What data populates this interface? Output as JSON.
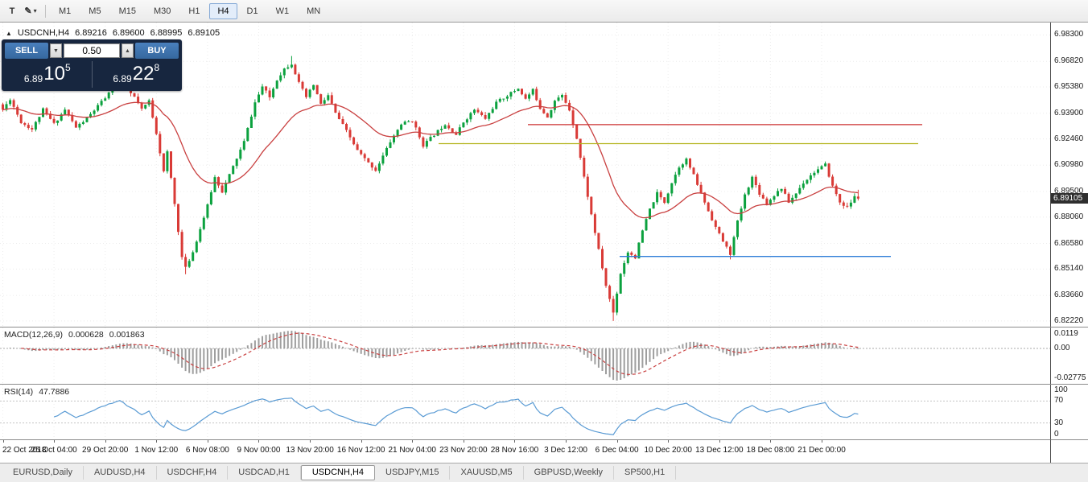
{
  "icons": {
    "tool_text": "T",
    "pencil": "✎",
    "caret_down": "▾",
    "spin_down": "▼",
    "spin_up": "▲",
    "collapse": "▲"
  },
  "timeframes": {
    "items": [
      "M1",
      "M5",
      "M15",
      "M30",
      "H1",
      "H4",
      "D1",
      "W1",
      "MN"
    ],
    "active": "H4"
  },
  "chart": {
    "symbol": "USDCNH,H4",
    "open": "6.89216",
    "high": "6.89600",
    "low": "6.88995",
    "close": "6.89105",
    "current_price": "6.89105"
  },
  "trade_panel": {
    "sell_label": "SELL",
    "buy_label": "BUY",
    "lot": "0.50",
    "sell_quote": {
      "prefix": "6.89",
      "main": "10",
      "sup": "5"
    },
    "buy_quote": {
      "prefix": "6.89",
      "main": "22",
      "sup": "8"
    }
  },
  "macd": {
    "name": "MACD(12,26,9)",
    "value_main": "0.000628",
    "value_signal": "0.001863",
    "axis": [
      "0.0119",
      "0.00",
      "-0.02775"
    ]
  },
  "rsi": {
    "name": "RSI(14)",
    "value": "47.7886",
    "axis": [
      100,
      70,
      30,
      0
    ],
    "levels": [
      70,
      30
    ]
  },
  "tabs": {
    "items": [
      "EURUSD,Daily",
      "AUDUSD,H4",
      "USDCHF,H4",
      "USDCAD,H1",
      "USDCNH,H4",
      "USDJPY,M15",
      "XAUUSD,M5",
      "GBPUSD,Weekly",
      "SP500,H1"
    ],
    "active": "USDCNH,H4"
  },
  "colors": {
    "up": "#0ba13e",
    "down": "#d93a36",
    "ma": "#c94040",
    "macd_hist": "#9e9e9e",
    "macd_signal": "#c94040",
    "rsi": "#5a9bd4",
    "grid": "#ececec",
    "level": "#c4c4c4"
  },
  "chart_data": {
    "type": "candlestick",
    "symbol": "USDCNH",
    "timeframe": "H4",
    "count": 235,
    "seed": 11,
    "noise": 0.0016,
    "wick": 0.0018,
    "ma_period": 26,
    "y_top": 6.99,
    "y_bottom": 6.819,
    "price_axis": [
      "6.98300",
      "6.96820",
      "6.95380",
      "6.93900",
      "6.92460",
      "6.90980",
      "6.89500",
      "6.88060",
      "6.86580",
      "6.85140",
      "6.83660",
      "6.82220"
    ],
    "time_labels": [
      "22 Oct 2018",
      "25 Oct 04:00",
      "29 Oct 20:00",
      "1 Nov 12:00",
      "6 Nov 08:00",
      "9 Nov 00:00",
      "13 Nov 20:00",
      "16 Nov 12:00",
      "21 Nov 04:00",
      "23 Nov 20:00",
      "28 Nov 16:00",
      "3 Dec 12:00",
      "6 Dec 04:00",
      "10 Dec 20:00",
      "13 Dec 12:00",
      "18 Dec 08:00",
      "21 Dec 00:00"
    ],
    "tick_every": 14,
    "anchors": [
      [
        0,
        6.941
      ],
      [
        2,
        6.947
      ],
      [
        5,
        6.934
      ],
      [
        8,
        6.93
      ],
      [
        11,
        6.941
      ],
      [
        14,
        6.933
      ],
      [
        17,
        6.941
      ],
      [
        20,
        6.931
      ],
      [
        23,
        6.936
      ],
      [
        26,
        6.943
      ],
      [
        29,
        6.95
      ],
      [
        32,
        6.957
      ],
      [
        34,
        6.952
      ],
      [
        36,
        6.948
      ],
      [
        38,
        6.941
      ],
      [
        40,
        6.946
      ],
      [
        42,
        6.928
      ],
      [
        44,
        6.906
      ],
      [
        45,
        6.917
      ],
      [
        47,
        6.888
      ],
      [
        49,
        6.858
      ],
      [
        50,
        6.852
      ],
      [
        52,
        6.861
      ],
      [
        54,
        6.874
      ],
      [
        56,
        6.887
      ],
      [
        58,
        6.903
      ],
      [
        60,
        6.895
      ],
      [
        63,
        6.909
      ],
      [
        66,
        6.923
      ],
      [
        69,
        6.945
      ],
      [
        71,
        6.954
      ],
      [
        73,
        6.948
      ],
      [
        75,
        6.958
      ],
      [
        77,
        6.964
      ],
      [
        79,
        6.967
      ],
      [
        81,
        6.956
      ],
      [
        83,
        6.948
      ],
      [
        85,
        6.955
      ],
      [
        87,
        6.944
      ],
      [
        89,
        6.949
      ],
      [
        91,
        6.939
      ],
      [
        94,
        6.929
      ],
      [
        97,
        6.918
      ],
      [
        100,
        6.911
      ],
      [
        102,
        6.907
      ],
      [
        104,
        6.915
      ],
      [
        106,
        6.923
      ],
      [
        109,
        6.933
      ],
      [
        112,
        6.935
      ],
      [
        115,
        6.921
      ],
      [
        118,
        6.927
      ],
      [
        121,
        6.933
      ],
      [
        124,
        6.927
      ],
      [
        126,
        6.934
      ],
      [
        129,
        6.941
      ],
      [
        132,
        6.936
      ],
      [
        135,
        6.945
      ],
      [
        138,
        6.949
      ],
      [
        141,
        6.953
      ],
      [
        143,
        6.947
      ],
      [
        145,
        6.952
      ],
      [
        147,
        6.942
      ],
      [
        149,
        6.937
      ],
      [
        151,
        6.946
      ],
      [
        153,
        6.949
      ],
      [
        155,
        6.941
      ],
      [
        157,
        6.925
      ],
      [
        159,
        6.903
      ],
      [
        161,
        6.882
      ],
      [
        163,
        6.862
      ],
      [
        165,
        6.842
      ],
      [
        167,
        6.827
      ],
      [
        169,
        6.849
      ],
      [
        171,
        6.861
      ],
      [
        173,
        6.858
      ],
      [
        175,
        6.873
      ],
      [
        177,
        6.885
      ],
      [
        179,
        6.894
      ],
      [
        181,
        6.889
      ],
      [
        183,
        6.9
      ],
      [
        185,
        6.909
      ],
      [
        187,
        6.913
      ],
      [
        189,
        6.904
      ],
      [
        191,
        6.894
      ],
      [
        193,
        6.884
      ],
      [
        195,
        6.875
      ],
      [
        197,
        6.867
      ],
      [
        199,
        6.86
      ],
      [
        201,
        6.878
      ],
      [
        203,
        6.893
      ],
      [
        205,
        6.903
      ],
      [
        207,
        6.894
      ],
      [
        209,
        6.888
      ],
      [
        211,
        6.893
      ],
      [
        213,
        6.897
      ],
      [
        215,
        6.889
      ],
      [
        217,
        6.894
      ],
      [
        219,
        6.9
      ],
      [
        222,
        6.906
      ],
      [
        225,
        6.91
      ],
      [
        227,
        6.898
      ],
      [
        229,
        6.889
      ],
      [
        231,
        6.886
      ],
      [
        233,
        6.892
      ],
      [
        234,
        6.891
      ]
    ],
    "overrides": [
      {
        "idx": 79,
        "high": 6.9712
      },
      {
        "idx": 50,
        "low": 6.8485
      },
      {
        "idx": 167,
        "low": 6.8222
      },
      {
        "idx": 173,
        "low": 6.857
      },
      {
        "idx": 199,
        "low": 6.8568
      }
    ],
    "last_candle": {
      "o": 6.89216,
      "h": 6.896,
      "l": 6.88995,
      "c": 6.89105
    },
    "hlines": [
      {
        "color": "#cc3030",
        "price": 6.9326,
        "from": 0.503,
        "to": 0.878
      },
      {
        "color": "#b4b41e",
        "price": 6.9219,
        "from": 0.418,
        "to": 0.874
      },
      {
        "color": "#2f7ed8",
        "price": 6.8585,
        "from": 0.59,
        "to": 0.848
      }
    ]
  }
}
